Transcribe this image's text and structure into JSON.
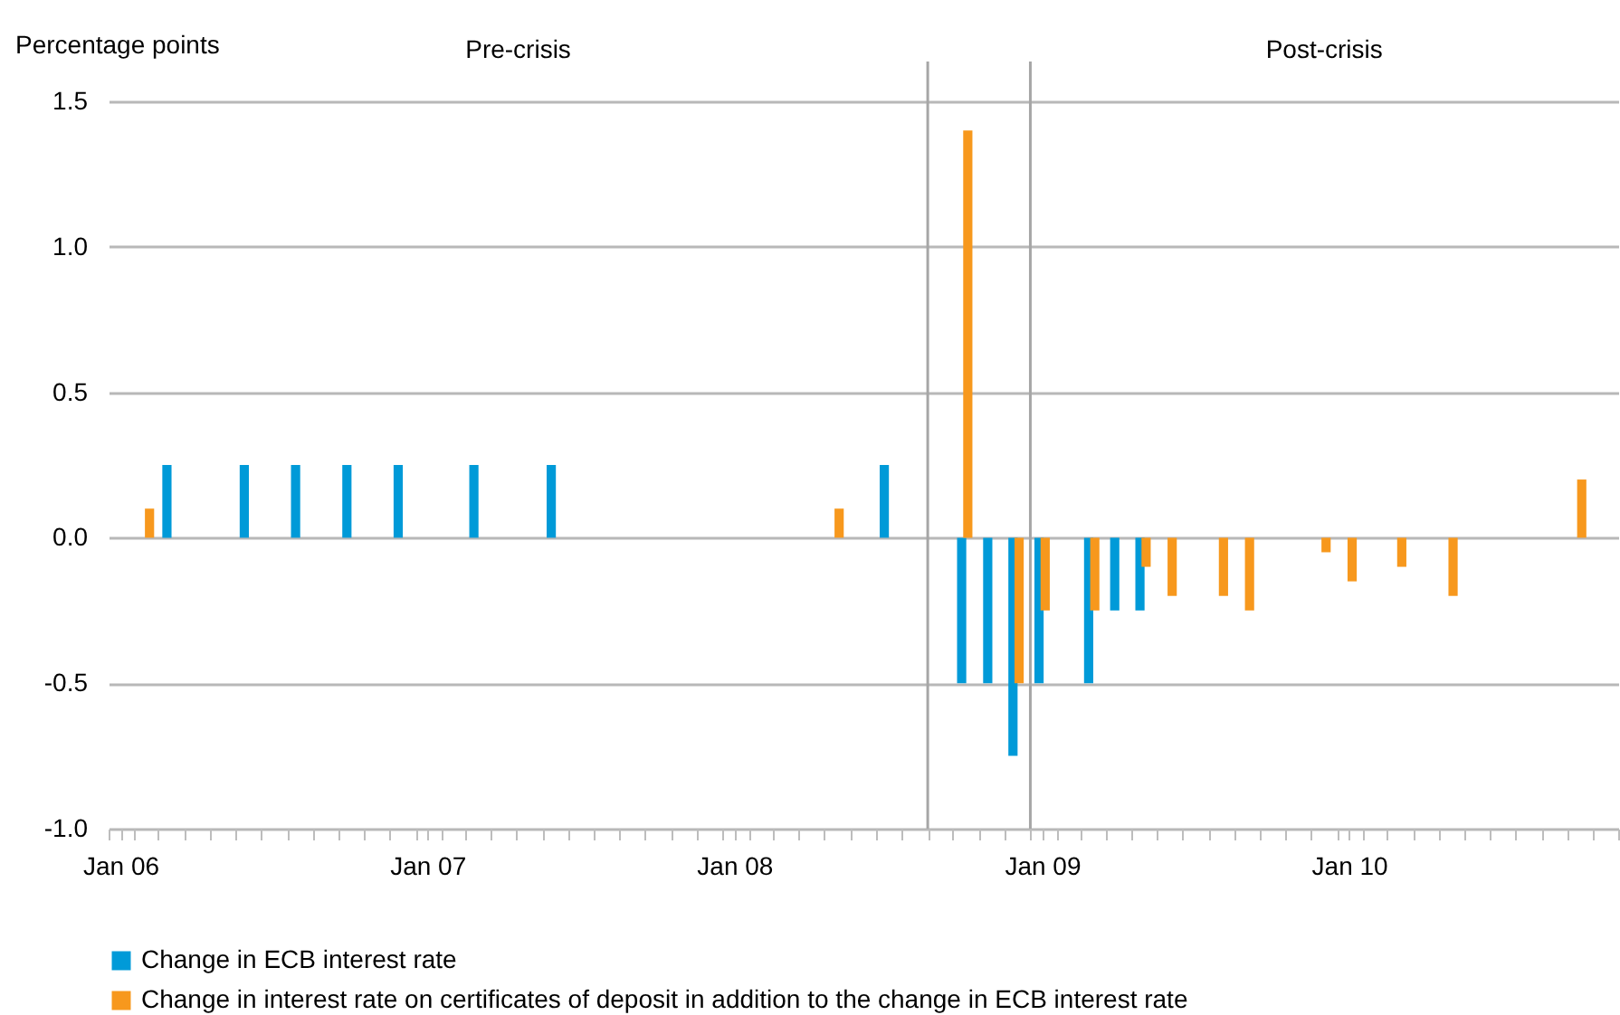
{
  "chart_data": {
    "type": "bar",
    "ylabel": "Percentage points",
    "annotations": [
      "Pre-crisis",
      "Post-crisis"
    ],
    "series": [
      {
        "name": "Change in ECB interest rate",
        "color": "#009ad8",
        "x": [
          "2006-03-15",
          "2006-06-15",
          "2006-08-15",
          "2006-10-15",
          "2006-12-15",
          "2007-03-15",
          "2007-06-15",
          "2008-07-15",
          "2008-10-15",
          "2008-11-15",
          "2008-12-15",
          "2009-01-15",
          "2009-03-15",
          "2009-04-15",
          "2009-05-15"
        ],
        "values": [
          0.25,
          0.25,
          0.25,
          0.25,
          0.25,
          0.25,
          0.25,
          0.25,
          -0.5,
          -0.5,
          -0.75,
          -0.5,
          -0.5,
          -0.25,
          -0.25
        ]
      },
      {
        "name": "Change in interest rate on certificates of deposit in addition to the change in ECB interest rate",
        "color": "#f7981d",
        "x": [
          "2006-02-15",
          "2008-05-15",
          "2008-10-15",
          "2008-12-15",
          "2009-01-15",
          "2009-03-15",
          "2009-05-15",
          "2009-06-15",
          "2009-08-15",
          "2009-09-15",
          "2009-12-15",
          "2010-01-15",
          "2010-03-15",
          "2010-05-15",
          "2010-10-15"
        ],
        "values": [
          0.1,
          0.1,
          1.4,
          -0.5,
          -0.25,
          -0.25,
          -0.1,
          -0.2,
          -0.2,
          -0.25,
          -0.05,
          -0.15,
          -0.1,
          -0.2,
          0.2
        ]
      }
    ],
    "xlim": [
      "2006-01",
      "2010-12"
    ],
    "xticks": [
      {
        "value": "2006-01",
        "label": null
      },
      {
        "value": "2006-01-15",
        "label": "Jan 06"
      },
      {
        "value": "2006-02",
        "label": null
      },
      {
        "value": "2006-03",
        "label": null
      },
      {
        "value": "2006-04",
        "label": null
      },
      {
        "value": "2006-05",
        "label": null
      },
      {
        "value": "2006-06",
        "label": null
      },
      {
        "value": "2006-07",
        "label": null
      },
      {
        "value": "2006-08",
        "label": null
      },
      {
        "value": "2006-09",
        "label": null
      },
      {
        "value": "2006-10",
        "label": null
      },
      {
        "value": "2006-11",
        "label": null
      },
      {
        "value": "2006-12",
        "label": null
      },
      {
        "value": "2007-01",
        "label": null
      },
      {
        "value": "2007-01-15",
        "label": "Jan 07"
      },
      {
        "value": "2007-02",
        "label": null
      },
      {
        "value": "2007-03",
        "label": null
      },
      {
        "value": "2007-04",
        "label": null
      },
      {
        "value": "2007-05",
        "label": null
      },
      {
        "value": "2007-06",
        "label": null
      },
      {
        "value": "2007-07",
        "label": null
      },
      {
        "value": "2007-08",
        "label": null
      },
      {
        "value": "2007-09",
        "label": null
      },
      {
        "value": "2007-10",
        "label": null
      },
      {
        "value": "2007-11",
        "label": null
      },
      {
        "value": "2007-12",
        "label": null
      },
      {
        "value": "2008-01",
        "label": null
      },
      {
        "value": "2008-01-15",
        "label": "Jan 08"
      },
      {
        "value": "2008-02",
        "label": null
      },
      {
        "value": "2008-03",
        "label": null
      },
      {
        "value": "2008-04",
        "label": null
      },
      {
        "value": "2008-05",
        "label": null
      },
      {
        "value": "2008-06",
        "label": null
      },
      {
        "value": "2008-07",
        "label": null
      },
      {
        "value": "2008-08",
        "label": null
      },
      {
        "value": "2008-09",
        "label": null
      },
      {
        "value": "2008-10",
        "label": null
      },
      {
        "value": "2008-11",
        "label": null
      },
      {
        "value": "2008-12",
        "label": null
      },
      {
        "value": "2009-01",
        "label": null
      },
      {
        "value": "2009-01-15",
        "label": "Jan 09"
      },
      {
        "value": "2009-02",
        "label": null
      },
      {
        "value": "2009-03",
        "label": null
      },
      {
        "value": "2009-04",
        "label": null
      },
      {
        "value": "2009-05",
        "label": null
      },
      {
        "value": "2009-06",
        "label": null
      },
      {
        "value": "2009-07",
        "label": null
      },
      {
        "value": "2009-08",
        "label": null
      },
      {
        "value": "2009-09",
        "label": null
      },
      {
        "value": "2009-10",
        "label": null
      },
      {
        "value": "2009-11",
        "label": null
      },
      {
        "value": "2009-12",
        "label": null
      },
      {
        "value": "2010-01",
        "label": null
      },
      {
        "value": "2010-01-15",
        "label": "Jan 10"
      },
      {
        "value": "2010-02",
        "label": null
      },
      {
        "value": "2010-03",
        "label": null
      },
      {
        "value": "2010-04",
        "label": null
      },
      {
        "value": "2010-05",
        "label": null
      },
      {
        "value": "2010-06",
        "label": null
      },
      {
        "value": "2010-07",
        "label": null
      },
      {
        "value": "2010-08",
        "label": null
      },
      {
        "value": "2010-09",
        "label": null
      },
      {
        "value": "2010-10",
        "label": null
      },
      {
        "value": "2010-11",
        "label": null
      },
      {
        "value": "2010-12",
        "label": null
      }
    ],
    "ylim": [
      -1.0,
      1.5
    ],
    "yticks": [
      {
        "value": -1.0,
        "label": "-1.0"
      },
      {
        "value": -0.5,
        "label": "-0.5"
      },
      {
        "value": 0,
        "label": "0.0"
      },
      {
        "value": 0.5,
        "label": "0.5"
      },
      {
        "value": 1.0,
        "label": "1.0"
      },
      {
        "value": 1.5,
        "label": "1.5"
      }
    ],
    "ref_lines": [
      {
        "axis": "x",
        "value": "2008-09",
        "label": null
      },
      {
        "axis": "x",
        "value": "2009-01",
        "label": null
      }
    ],
    "grid": "y",
    "legend": "bottom"
  }
}
